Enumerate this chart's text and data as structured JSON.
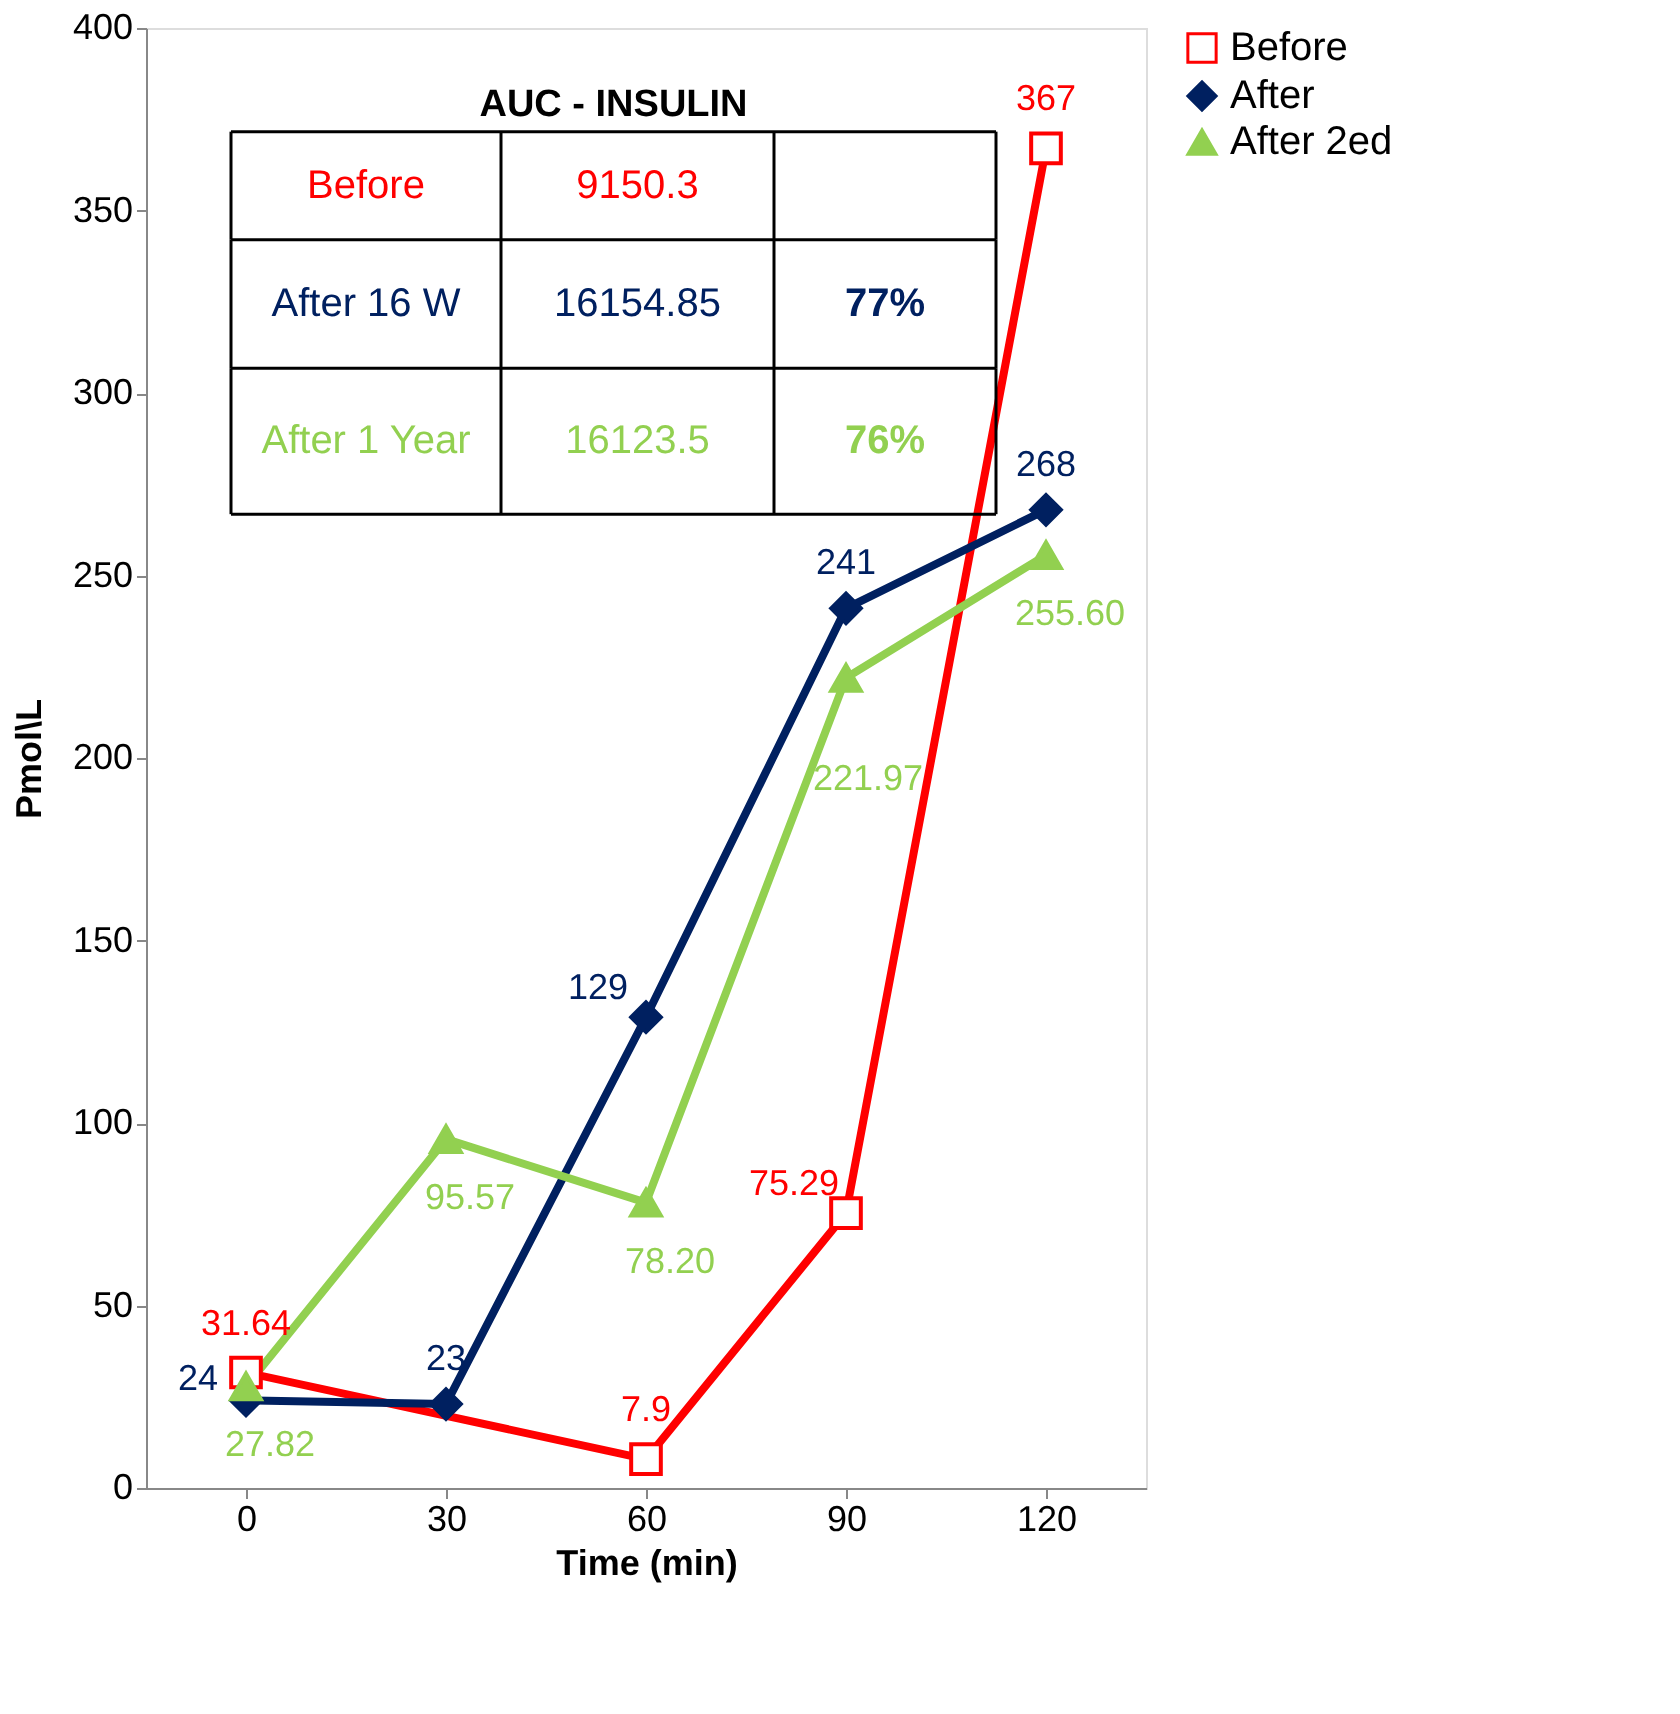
{
  "chart_data": {
    "type": "line",
    "xlabel": "Time (min)",
    "ylabel": "Pmol\\L",
    "x": [
      0,
      30,
      60,
      90,
      120
    ],
    "xlim": [
      -15,
      135
    ],
    "xticks": [
      0,
      30,
      60,
      90,
      120
    ],
    "series": [
      {
        "name": "Before",
        "color": "#ff0000",
        "marker": "square",
        "values": [
          31.64,
          null,
          7.9,
          75.29,
          367
        ],
        "value_labels": [
          "31.64",
          null,
          "7.9",
          "75.29",
          "367"
        ]
      },
      {
        "name": "After",
        "color": "#002060",
        "marker": "diamond",
        "values": [
          24,
          23,
          129,
          241,
          268
        ],
        "value_labels": [
          "24",
          "23",
          "129",
          "241",
          "268"
        ]
      },
      {
        "name": "After 2ed",
        "color": "#92d050",
        "marker": "triangle",
        "values": [
          27.82,
          95.57,
          78.2,
          221.97,
          255.6
        ],
        "value_labels": [
          "27.82",
          "95.57",
          "78.20",
          "221.97",
          "255.60"
        ]
      }
    ],
    "ylim": [
      0,
      400
    ],
    "yticks": [
      0,
      50,
      100,
      150,
      200,
      250,
      300,
      350,
      400
    ],
    "grid": false,
    "legend": "right",
    "annotations": [
      "AUC - INSULIN",
      "Before",
      "9150.3",
      "After 16 W",
      "16154.85",
      "77%",
      "After 1 Year",
      "16123.5",
      "76%"
    ]
  }
}
